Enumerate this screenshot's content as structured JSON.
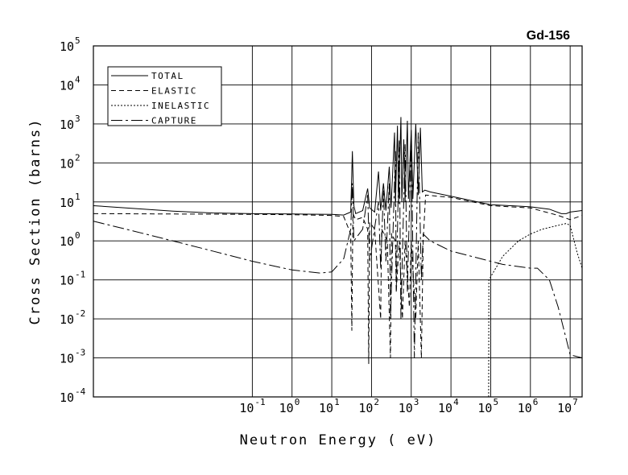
{
  "chart_data": {
    "type": "line",
    "title": "Gd-156",
    "xlabel": "Neutron Energy ( eV)",
    "ylabel": "Cross Section (barns)",
    "xscale": "log",
    "yscale": "log",
    "xlim": [
      1e-05,
      20000000
    ],
    "ylim": [
      0.0001,
      100000
    ],
    "grid": true,
    "legend_position": "top-left",
    "x_ticks": [
      {
        "value": 0.1,
        "base": "10",
        "exp": "-1"
      },
      {
        "value": 1,
        "base": "10",
        "exp": "0"
      },
      {
        "value": 10,
        "base": "10",
        "exp": "1"
      },
      {
        "value": 100,
        "base": "10",
        "exp": "2"
      },
      {
        "value": 1000,
        "base": "10",
        "exp": "3"
      },
      {
        "value": 10000,
        "base": "10",
        "exp": "4"
      },
      {
        "value": 100000,
        "base": "10",
        "exp": "5"
      },
      {
        "value": 1000000,
        "base": "10",
        "exp": "6"
      },
      {
        "value": 10000000,
        "base": "10",
        "exp": "7"
      }
    ],
    "y_ticks": [
      {
        "value": 0.0001,
        "base": "10",
        "exp": "-4"
      },
      {
        "value": 0.001,
        "base": "10",
        "exp": "-3"
      },
      {
        "value": 0.01,
        "base": "10",
        "exp": "-2"
      },
      {
        "value": 0.1,
        "base": "10",
        "exp": "-1"
      },
      {
        "value": 1,
        "base": "10",
        "exp": "0"
      },
      {
        "value": 10,
        "base": "10",
        "exp": "1"
      },
      {
        "value": 100,
        "base": "10",
        "exp": "2"
      },
      {
        "value": 1000,
        "base": "10",
        "exp": "3"
      },
      {
        "value": 10000,
        "base": "10",
        "exp": "4"
      },
      {
        "value": 100000,
        "base": "10",
        "exp": "5"
      }
    ],
    "series": [
      {
        "name": "TOTAL",
        "style": "solid",
        "points": [
          [
            1e-05,
            8.0
          ],
          [
            0.0001,
            6.8
          ],
          [
            0.001,
            5.8
          ],
          [
            0.01,
            5.2
          ],
          [
            0.1,
            5.0
          ],
          [
            1,
            4.9
          ],
          [
            10,
            4.8
          ],
          [
            20,
            4.6
          ],
          [
            30,
            5.5
          ],
          [
            33,
            200
          ],
          [
            36,
            8
          ],
          [
            40,
            5
          ],
          [
            60,
            6
          ],
          [
            80,
            22
          ],
          [
            90,
            7
          ],
          [
            120,
            5.5
          ],
          [
            150,
            60
          ],
          [
            170,
            6
          ],
          [
            200,
            30
          ],
          [
            230,
            6
          ],
          [
            280,
            80
          ],
          [
            310,
            7
          ],
          [
            380,
            600
          ],
          [
            400,
            8
          ],
          [
            450,
            900
          ],
          [
            480,
            9
          ],
          [
            550,
            1500
          ],
          [
            580,
            10
          ],
          [
            650,
            400
          ],
          [
            700,
            10
          ],
          [
            800,
            1200
          ],
          [
            850,
            12
          ],
          [
            1000,
            700
          ],
          [
            1100,
            12
          ],
          [
            1300,
            1000
          ],
          [
            1500,
            15
          ],
          [
            1700,
            800
          ],
          [
            1900,
            18
          ],
          [
            2200,
            20
          ],
          [
            3000,
            18
          ],
          [
            10000,
            14
          ],
          [
            100000,
            8.5
          ],
          [
            1000000,
            7.5
          ],
          [
            3000000,
            6.5
          ],
          [
            6000000,
            5.0
          ],
          [
            8000000,
            5.0
          ],
          [
            10000000,
            5.5
          ],
          [
            20000000,
            6.0
          ]
        ]
      },
      {
        "name": "ELASTIC",
        "style": "dashed",
        "points": [
          [
            1e-05,
            5.0
          ],
          [
            0.001,
            4.9
          ],
          [
            0.1,
            4.8
          ],
          [
            1,
            4.7
          ],
          [
            10,
            4.5
          ],
          [
            20,
            4.2
          ],
          [
            30,
            1.5
          ],
          [
            32,
            0.005
          ],
          [
            34,
            5
          ],
          [
            40,
            3.5
          ],
          [
            60,
            4
          ],
          [
            80,
            2
          ],
          [
            85,
            0.0007
          ],
          [
            90,
            3
          ],
          [
            120,
            2
          ],
          [
            170,
            0.01
          ],
          [
            180,
            2
          ],
          [
            250,
            1
          ],
          [
            300,
            0.001
          ],
          [
            320,
            1.5
          ],
          [
            400,
            1
          ],
          [
            420,
            0.05
          ],
          [
            500,
            1
          ],
          [
            600,
            0.01
          ],
          [
            700,
            1
          ],
          [
            900,
            0.02
          ],
          [
            1000,
            1
          ],
          [
            1300,
            0.01
          ],
          [
            1500,
            1
          ],
          [
            1800,
            0.001
          ],
          [
            2000,
            1
          ],
          [
            2300,
            15
          ],
          [
            10000,
            13
          ],
          [
            100000,
            8
          ],
          [
            1000000,
            7
          ],
          [
            5000000,
            4.5
          ],
          [
            10000000,
            3.5
          ],
          [
            20000000,
            4.5
          ]
        ]
      },
      {
        "name": "INELASTIC",
        "style": "dotted",
        "points": [
          [
            89000,
            0.0001
          ],
          [
            90000,
            0.1
          ],
          [
            100000,
            0.12
          ],
          [
            200000,
            0.4
          ],
          [
            500000,
            1.0
          ],
          [
            1000000,
            1.5
          ],
          [
            2000000,
            2.0
          ],
          [
            5000000,
            2.5
          ],
          [
            8000000,
            2.8
          ],
          [
            10000000,
            2.5
          ],
          [
            15000000,
            0.5
          ],
          [
            20000000,
            0.2
          ]
        ]
      },
      {
        "name": "CAPTURE",
        "style": "longdash",
        "points": [
          [
            1e-05,
            3.2
          ],
          [
            0.0001,
            1.8
          ],
          [
            0.001,
            1.0
          ],
          [
            0.01,
            0.55
          ],
          [
            0.1,
            0.3
          ],
          [
            1,
            0.18
          ],
          [
            5,
            0.15
          ],
          [
            10,
            0.16
          ],
          [
            20,
            0.35
          ],
          [
            30,
            2
          ],
          [
            33,
            30
          ],
          [
            36,
            1
          ],
          [
            60,
            2
          ],
          [
            80,
            15
          ],
          [
            90,
            0.3
          ],
          [
            150,
            10
          ],
          [
            170,
            0.2
          ],
          [
            200,
            20
          ],
          [
            230,
            0.3
          ],
          [
            280,
            30
          ],
          [
            300,
            0.01
          ],
          [
            400,
            200
          ],
          [
            420,
            0.05
          ],
          [
            500,
            400
          ],
          [
            550,
            0.01
          ],
          [
            700,
            300
          ],
          [
            800,
            0.05
          ],
          [
            1000,
            500
          ],
          [
            1200,
            0.001
          ],
          [
            1500,
            600
          ],
          [
            1800,
            0.1
          ],
          [
            2000,
            1.5
          ],
          [
            3000,
            1.0
          ],
          [
            10000,
            0.55
          ],
          [
            100000,
            0.3
          ],
          [
            200000,
            0.25
          ],
          [
            1000000,
            0.2
          ],
          [
            1500000,
            0.2
          ],
          [
            3000000,
            0.1
          ],
          [
            5000000,
            0.02
          ],
          [
            8000000,
            0.003
          ],
          [
            10000000,
            0.0012
          ],
          [
            20000000,
            0.001
          ]
        ]
      }
    ]
  }
}
